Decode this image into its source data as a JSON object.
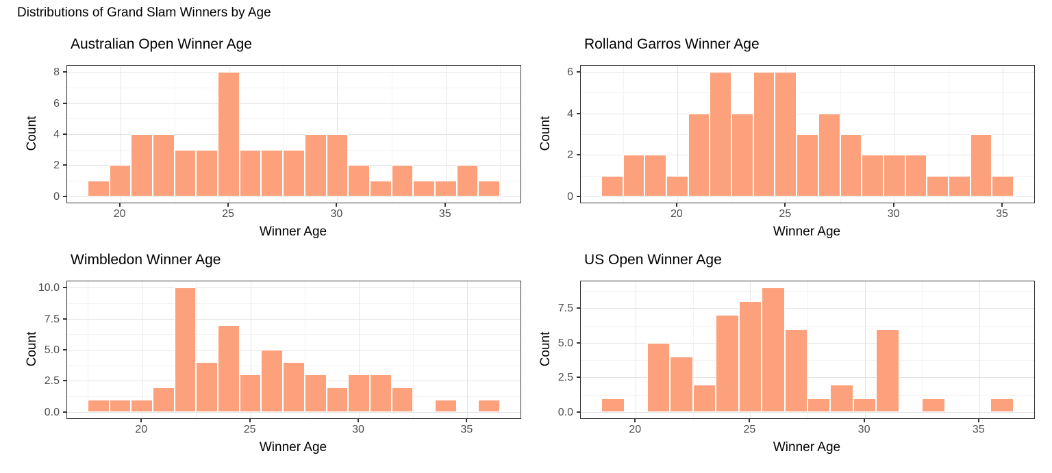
{
  "page_title": "Distributions of Grand Slam Winners by Age",
  "colors": {
    "bar_fill": "#FDA17C",
    "bar_stroke": "#FFFFFF",
    "grid_major": "#E4E4E4",
    "grid_minor": "#F2F2F2",
    "panel_border": "#333333",
    "tick": "#333333",
    "tick_label": "#4D4D4D",
    "title": "#000000",
    "background": "#FFFFFF"
  },
  "chart_data": [
    {
      "type": "bar",
      "subtype": "histogram",
      "title": "Australian Open Winner Age",
      "xlabel": "Winner Age",
      "ylabel": "Count",
      "bin_start": 18.5,
      "bin_width": 1,
      "bin_centers": [
        19,
        20,
        21,
        22,
        23,
        24,
        25,
        26,
        27,
        28,
        29,
        30,
        31,
        32,
        33,
        34,
        35,
        36,
        37
      ],
      "counts": [
        1,
        2,
        4,
        4,
        3,
        3,
        8,
        3,
        3,
        3,
        4,
        4,
        2,
        1,
        2,
        1,
        1,
        2,
        1
      ],
      "xlim": [
        17.55,
        38.45
      ],
      "ylim": [
        -0.4,
        8.4
      ],
      "x_ticks": [
        {
          "value": 20,
          "label": "20"
        },
        {
          "value": 25,
          "label": "25"
        },
        {
          "value": 30,
          "label": "30"
        },
        {
          "value": 35,
          "label": "35"
        }
      ],
      "y_ticks": [
        {
          "value": 0,
          "label": "0"
        },
        {
          "value": 2,
          "label": "2"
        },
        {
          "value": 4,
          "label": "4"
        },
        {
          "value": 6,
          "label": "6"
        },
        {
          "value": 8,
          "label": "8"
        }
      ],
      "x_minor": [
        22.5,
        27.5,
        32.5,
        37.5
      ],
      "y_minor": [
        1,
        3,
        5,
        7
      ],
      "grid": true,
      "legend": "none"
    },
    {
      "type": "bar",
      "subtype": "histogram",
      "title": "Rolland Garros Winner Age",
      "xlabel": "Winner Age",
      "ylabel": "Count",
      "bin_start": 16.5,
      "bin_width": 1,
      "bin_centers": [
        17,
        18,
        19,
        20,
        21,
        22,
        23,
        24,
        25,
        26,
        27,
        28,
        29,
        30,
        31,
        32,
        33,
        34,
        35
      ],
      "counts": [
        1,
        2,
        2,
        1,
        4,
        6,
        4,
        6,
        6,
        3,
        4,
        3,
        2,
        2,
        2,
        1,
        1,
        3,
        1
      ],
      "xlim": [
        15.55,
        36.45
      ],
      "ylim": [
        -0.3,
        6.3
      ],
      "x_ticks": [
        {
          "value": 20,
          "label": "20"
        },
        {
          "value": 25,
          "label": "25"
        },
        {
          "value": 30,
          "label": "30"
        },
        {
          "value": 35,
          "label": "35"
        }
      ],
      "y_ticks": [
        {
          "value": 0,
          "label": "0"
        },
        {
          "value": 2,
          "label": "2"
        },
        {
          "value": 4,
          "label": "4"
        },
        {
          "value": 6,
          "label": "6"
        }
      ],
      "x_minor": [
        17.5,
        22.5,
        27.5,
        32.5
      ],
      "y_minor": [
        1,
        3,
        5
      ],
      "grid": true,
      "legend": "none"
    },
    {
      "type": "bar",
      "subtype": "histogram",
      "title": "Wimbledon Winner Age",
      "xlabel": "Winner Age",
      "ylabel": "Count",
      "bin_start": 17.5,
      "bin_width": 1,
      "bin_centers": [
        18,
        19,
        20,
        21,
        22,
        23,
        24,
        25,
        26,
        27,
        28,
        29,
        30,
        31,
        32,
        33,
        34,
        35,
        36
      ],
      "counts": [
        1,
        1,
        1,
        2,
        10,
        4,
        7,
        3,
        5,
        4,
        3,
        2,
        3,
        3,
        2,
        0,
        1,
        0,
        1
      ],
      "xlim": [
        16.55,
        37.45
      ],
      "ylim": [
        -0.5,
        10.5
      ],
      "x_ticks": [
        {
          "value": 20,
          "label": "20"
        },
        {
          "value": 25,
          "label": "25"
        },
        {
          "value": 30,
          "label": "30"
        },
        {
          "value": 35,
          "label": "35"
        }
      ],
      "y_ticks": [
        {
          "value": 0,
          "label": "0.0"
        },
        {
          "value": 2.5,
          "label": "2.5"
        },
        {
          "value": 5,
          "label": "5.0"
        },
        {
          "value": 7.5,
          "label": "7.5"
        },
        {
          "value": 10,
          "label": "10.0"
        }
      ],
      "x_minor": [
        17.5,
        22.5,
        27.5,
        32.5
      ],
      "y_minor": [
        1.25,
        3.75,
        6.25,
        8.75
      ],
      "grid": true,
      "legend": "none"
    },
    {
      "type": "bar",
      "subtype": "histogram",
      "title": "US Open Winner Age",
      "xlabel": "Winner Age",
      "ylabel": "Count",
      "bin_start": 18.5,
      "bin_width": 1,
      "bin_centers": [
        19,
        20,
        21,
        22,
        23,
        24,
        25,
        26,
        27,
        28,
        29,
        30,
        31,
        32,
        33,
        34,
        35,
        36
      ],
      "counts": [
        1,
        0,
        5,
        4,
        2,
        7,
        8,
        9,
        6,
        1,
        2,
        1,
        6,
        0,
        1,
        0,
        0,
        1
      ],
      "xlim": [
        17.6,
        37.4
      ],
      "ylim": [
        -0.45,
        9.45
      ],
      "x_ticks": [
        {
          "value": 20,
          "label": "20"
        },
        {
          "value": 25,
          "label": "25"
        },
        {
          "value": 30,
          "label": "30"
        },
        {
          "value": 35,
          "label": "35"
        }
      ],
      "y_ticks": [
        {
          "value": 0,
          "label": "0.0"
        },
        {
          "value": 2.5,
          "label": "2.5"
        },
        {
          "value": 5,
          "label": "5.0"
        },
        {
          "value": 7.5,
          "label": "7.5"
        }
      ],
      "x_minor": [
        22.5,
        27.5,
        32.5
      ],
      "y_minor": [
        1.25,
        3.75,
        6.25,
        8.75
      ],
      "grid": true,
      "legend": "none"
    }
  ]
}
